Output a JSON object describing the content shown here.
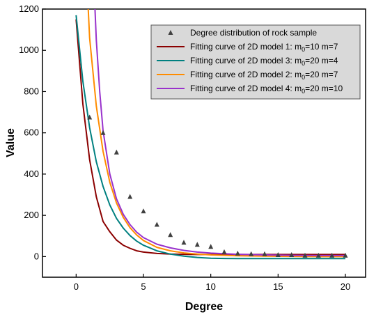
{
  "chart_data": {
    "type": "line",
    "title": "",
    "xlabel": "Degree",
    "ylabel": "Value",
    "xlim": [
      -2.5,
      21.5
    ],
    "ylim": [
      -100,
      1200
    ],
    "x_ticks": [
      0,
      5,
      10,
      15,
      20
    ],
    "y_ticks": [
      0,
      200,
      400,
      600,
      800,
      1000,
      1200
    ],
    "grid": false,
    "legend_position": "top-right",
    "scatter": {
      "name": "Degree distribution of rock sample",
      "color": "#404040",
      "x": [
        1,
        2,
        3,
        4,
        5,
        6,
        7,
        8,
        9,
        10,
        11,
        12,
        13,
        14,
        15,
        16,
        17,
        18,
        19,
        20
      ],
      "y": [
        675,
        600,
        505,
        290,
        220,
        155,
        105,
        68,
        58,
        48,
        22,
        15,
        12,
        12,
        8,
        8,
        5,
        5,
        5,
        5
      ]
    },
    "series": [
      {
        "name": "Fitting curve of 2D model 1: m",
        "sub": "0",
        "suffix": "=10 m=7",
        "color": "#8b0000",
        "x": [
          0.0,
          0.5,
          1.0,
          1.5,
          2.0,
          2.5,
          3.0,
          3.5,
          4.0,
          4.5,
          5.0,
          6.0,
          7.0,
          8.0,
          9.0,
          10.0,
          12.0,
          14.0,
          16.0,
          18.0,
          20.0
        ],
        "y": [
          1150,
          740,
          470,
          290,
          170,
          120,
          80,
          55,
          40,
          28,
          22,
          15,
          12,
          11,
          10,
          10,
          10,
          10,
          10,
          10,
          10
        ]
      },
      {
        "name": "Fitting curve of 2D model 3: m",
        "sub": "0",
        "suffix": "=20 m=4",
        "color": "#008080",
        "x": [
          0.0,
          0.5,
          1.0,
          1.5,
          2.0,
          2.5,
          3.0,
          3.5,
          4.0,
          4.5,
          5.0,
          6.0,
          7.0,
          8.0,
          9.0,
          10.0,
          11.0,
          12.0,
          14.0,
          16.0,
          18.0,
          20.0
        ],
        "y": [
          1170,
          850,
          625,
          460,
          340,
          250,
          185,
          138,
          102,
          75,
          55,
          28,
          12,
          2,
          -4,
          -8,
          -9,
          -10,
          -10,
          -10,
          -10,
          -10
        ]
      },
      {
        "name": "Fitting curve of 2D model 2: m",
        "sub": "0",
        "suffix": "=20 m=7",
        "color": "#ff8c00",
        "x": [
          0.9,
          1.0,
          1.5,
          2.0,
          2.5,
          3.0,
          3.5,
          4.0,
          4.5,
          5.0,
          6.0,
          7.0,
          8.0,
          9.0,
          10.0,
          12.0,
          14.0,
          16.0,
          18.0,
          20.0
        ],
        "y": [
          1200,
          1060,
          730,
          510,
          360,
          260,
          190,
          140,
          105,
          78,
          45,
          28,
          18,
          12,
          8,
          4,
          2,
          1,
          0,
          0
        ]
      },
      {
        "name": "Fitting curve of 2D model 4: m",
        "sub": "0",
        "suffix": "=20 m=10",
        "color": "#9932cc",
        "x": [
          1.4,
          1.5,
          1.75,
          2.0,
          2.5,
          3.0,
          3.5,
          4.0,
          4.5,
          5.0,
          6.0,
          7.0,
          8.0,
          9.0,
          10.0,
          12.0,
          14.0,
          16.0,
          18.0,
          20.0
        ],
        "y": [
          1200,
          1050,
          800,
          610,
          400,
          280,
          205,
          155,
          118,
          92,
          60,
          42,
          30,
          22,
          17,
          11,
          8,
          6,
          5,
          5
        ]
      }
    ]
  }
}
